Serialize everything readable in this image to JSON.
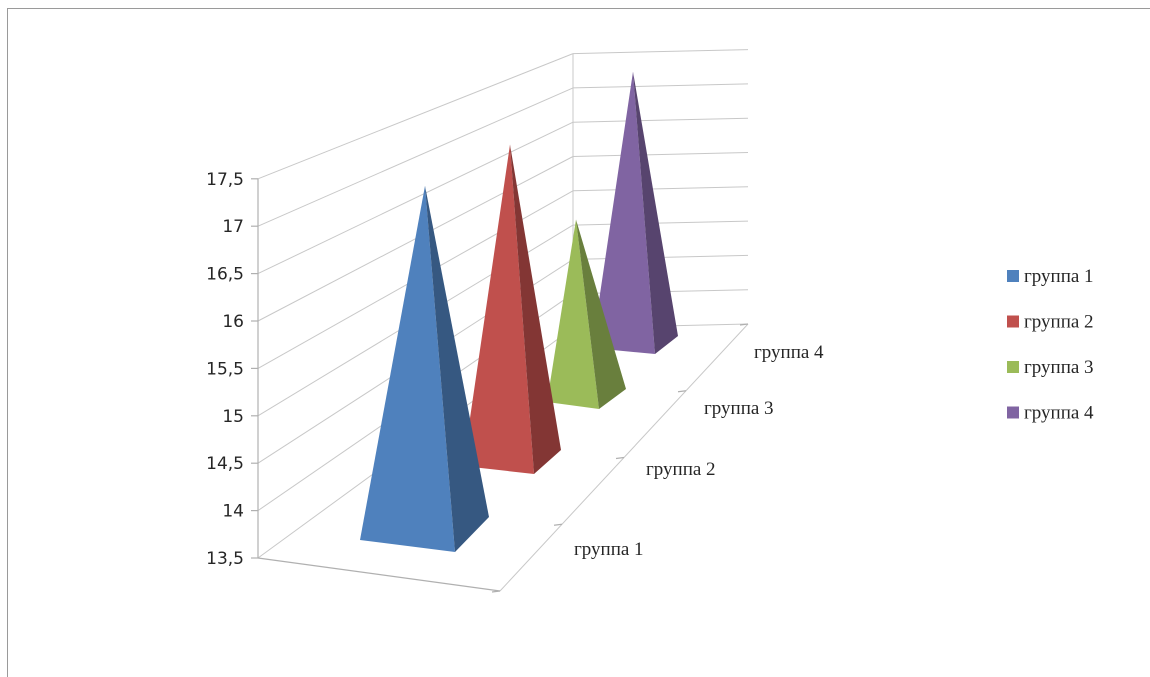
{
  "chart_data": {
    "type": "bar",
    "subtype": "3d-pyramid",
    "categories": [
      "группа 1",
      "группа 2",
      "группа 3",
      "группа 4"
    ],
    "values": [
      17.3,
      17.4,
      15.95,
      17.55
    ],
    "colors": [
      "#4f81bd",
      "#c0504d",
      "#9bbb59",
      "#8064a2"
    ],
    "y_ticks": [
      "13,5",
      "14",
      "14,5",
      "15",
      "15,5",
      "16",
      "16,5",
      "17",
      "17,5"
    ],
    "ylim": [
      13.5,
      17.5
    ],
    "grid": true,
    "legend": {
      "position": "right",
      "entries": [
        "группа 1",
        "группа 2",
        "группа 3",
        "группа 4"
      ]
    }
  }
}
